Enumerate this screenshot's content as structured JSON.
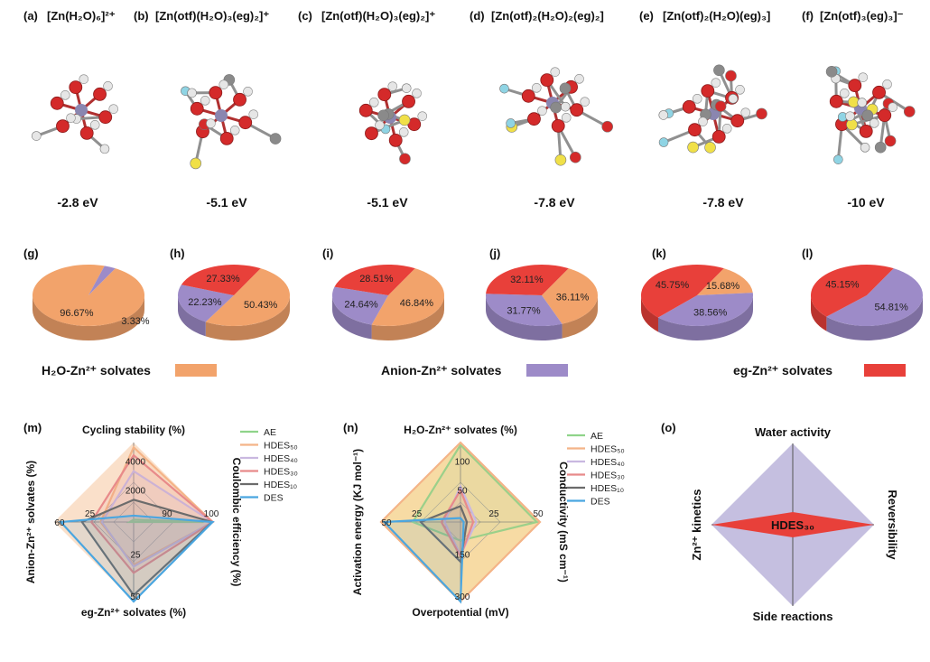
{
  "panels": {
    "a": "(a)",
    "b": "(b)",
    "c": "(c)",
    "d": "(d)",
    "e": "(e)",
    "f": "(f)",
    "g": "(g)",
    "h": "(h)",
    "i": "(i)",
    "j": "(j)",
    "k": "(k)",
    "l": "(l)",
    "m": "(m)",
    "n": "(n)",
    "o": "(o)"
  },
  "structures": [
    {
      "formula": "[Zn(H₂O)₆]²⁺",
      "energy": "-2.8 eV"
    },
    {
      "formula": "[Zn(otf)(H₂O)₃(eg)₂]⁺",
      "energy": "-5.1 eV"
    },
    {
      "formula": "[Zn(otf)(H₂O)₃(eg)₂]⁺",
      "energy": "-5.1 eV"
    },
    {
      "formula": "[Zn(otf)₂(H₂O)₂(eg)₂]",
      "energy": "-7.8 eV"
    },
    {
      "formula": "[Zn(otf)₂(H₂O)(eg)₃]",
      "energy": "-7.8 eV"
    },
    {
      "formula": "[Zn(otf)₃(eg)₃]⁻",
      "energy": "-10 eV"
    }
  ],
  "colors": {
    "h2o": "#f2a36b",
    "anion": "#9d8bc8",
    "eg": "#e8403a",
    "zn": "#8a86b0",
    "oxygen": "#d42a2a",
    "hydrogen": "#e6e6e6",
    "carbon": "#8a8a8a",
    "sulfur": "#f0e048",
    "fluorine": "#8fd4e4"
  },
  "legend": {
    "h2o": "H₂O-Zn²⁺ solvates",
    "anion": "Anion-Zn²⁺ solvates",
    "eg": "eg-Zn²⁺ solvates"
  },
  "chart_data": [
    {
      "type": "pie",
      "panel": "g",
      "slices": [
        {
          "name": "H2O-Zn2+ solvates",
          "value": 96.67
        },
        {
          "name": "Anion-Zn2+ solvates",
          "value": 3.33
        }
      ],
      "labels": [
        "96.67%",
        "3.33%"
      ]
    },
    {
      "type": "pie",
      "panel": "h",
      "slices": [
        {
          "name": "H2O-Zn2+ solvates",
          "value": 50.43
        },
        {
          "name": "Anion-Zn2+ solvates",
          "value": 22.23
        },
        {
          "name": "eg-Zn2+ solvates",
          "value": 27.33
        }
      ],
      "labels": [
        "50.43%",
        "22.23%",
        "27.33%"
      ]
    },
    {
      "type": "pie",
      "panel": "i",
      "slices": [
        {
          "name": "H2O-Zn2+ solvates",
          "value": 46.84
        },
        {
          "name": "Anion-Zn2+ solvates",
          "value": 24.64
        },
        {
          "name": "eg-Zn2+ solvates",
          "value": 28.51
        }
      ],
      "labels": [
        "46.84%",
        "24.64%",
        "28.51%"
      ]
    },
    {
      "type": "pie",
      "panel": "j",
      "slices": [
        {
          "name": "H2O-Zn2+ solvates",
          "value": 36.11
        },
        {
          "name": "Anion-Zn2+ solvates",
          "value": 31.77
        },
        {
          "name": "eg-Zn2+ solvates",
          "value": 32.11
        }
      ],
      "labels": [
        "36.11%",
        "31.77%",
        "32.11%"
      ]
    },
    {
      "type": "pie",
      "panel": "k",
      "slices": [
        {
          "name": "H2O-Zn2+ solvates",
          "value": 15.68
        },
        {
          "name": "Anion-Zn2+ solvates",
          "value": 38.56
        },
        {
          "name": "eg-Zn2+ solvates",
          "value": 45.75
        }
      ],
      "labels": [
        "15.68%",
        "38.56%",
        "45.75%"
      ]
    },
    {
      "type": "pie",
      "panel": "l",
      "slices": [
        {
          "name": "Anion-Zn2+ solvates",
          "value": 54.81
        },
        {
          "name": "eg-Zn2+ solvates",
          "value": 45.15
        }
      ],
      "labels": [
        "54.81%",
        "45.15%"
      ]
    },
    {
      "type": "radar",
      "panel": "m",
      "axes": [
        "Cycling stability (%)",
        "Coulombic efficiency (%)",
        "eg-Zn²⁺ solvates (%)",
        "Anion-Zn²⁺ solvates (%)"
      ],
      "axis_max": [
        5000,
        100,
        50,
        60
      ],
      "ticks": {
        "top": [
          "4000",
          "2000"
        ],
        "right": [
          "90",
          "100"
        ],
        "bottom": [
          "25",
          "50"
        ],
        "left": [
          "25",
          "60"
        ]
      },
      "series": [
        {
          "name": "AE",
          "color": "#8fd48a",
          "values": [
            150,
            88,
            0,
            3
          ]
        },
        {
          "name": "HDES₅₀",
          "color": "#f4b488",
          "values": [
            4700,
            99.6,
            27,
            25
          ]
        },
        {
          "name": "HDES₄₀",
          "color": "#c9b8e0",
          "values": [
            3200,
            99.3,
            28,
            24
          ]
        },
        {
          "name": "HDES₃₀",
          "color": "#e88a8a",
          "values": [
            4200,
            99.5,
            32,
            32
          ]
        },
        {
          "name": "HDES₁₀",
          "color": "#6b6b6b",
          "values": [
            1400,
            98.8,
            46,
            39
          ]
        },
        {
          "name": "DES",
          "color": "#4aa6e0",
          "values": [
            400,
            99.3,
            50,
            55
          ]
        }
      ]
    },
    {
      "type": "radar",
      "panel": "n",
      "axes": [
        "H₂O-Zn²⁺ solvates (%)",
        "Conductivity (mS cm⁻¹)",
        "Overpotential (mV)",
        "Activation energy (KJ mol⁻¹)"
      ],
      "axis_max": [
        100,
        50,
        300,
        50
      ],
      "ticks": {
        "top": [
          "100",
          "50"
        ],
        "right": [
          "25",
          "50"
        ],
        "bottom": [
          "150",
          "300"
        ],
        "left": [
          "25",
          "50"
        ]
      },
      "series": [
        {
          "name": "AE",
          "color": "#8fd48a",
          "values": [
            97,
            48,
            70,
            30
          ]
        },
        {
          "name": "HDES₅₀",
          "color": "#f4b488",
          "values": [
            100,
            50,
            300,
            50
          ]
        },
        {
          "name": "HDES₄₀",
          "color": "#c9b8e0",
          "values": [
            45,
            10,
            125,
            10
          ]
        },
        {
          "name": "HDES₃₀",
          "color": "#e88a8a",
          "values": [
            40,
            8,
            130,
            12
          ]
        },
        {
          "name": "HDES₁₀",
          "color": "#6b6b6b",
          "values": [
            20,
            4,
            150,
            25
          ]
        },
        {
          "name": "DES",
          "color": "#4aa6e0",
          "values": [
            5,
            2,
            300,
            48
          ]
        }
      ]
    },
    {
      "type": "radar",
      "panel": "o",
      "axes": [
        "Water activity",
        "Reversibility",
        "Side reactions",
        "Zn²⁺ kinetics"
      ],
      "center_label": "HDES₃₀"
    }
  ]
}
